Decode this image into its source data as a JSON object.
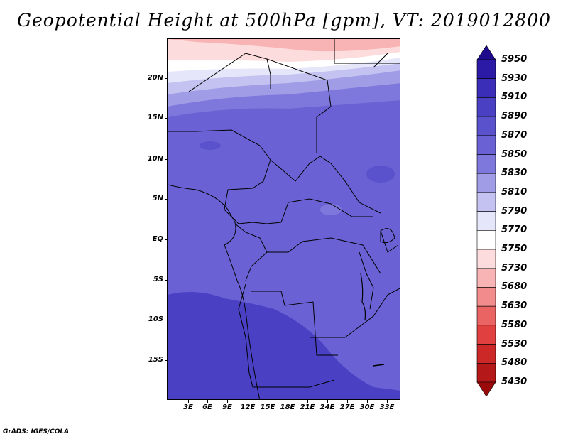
{
  "title": "Geopotential Height at 500hPa [gpm], VT: 2019012800",
  "credit": "GrADS: IGES/COLA",
  "lat_labels": [
    "20N",
    "15N",
    "10N",
    "5N",
    "EQ",
    "5S",
    "10S",
    "15S"
  ],
  "lon_labels": [
    "3E",
    "6E",
    "9E",
    "12E",
    "15E",
    "18E",
    "21E",
    "24E",
    "27E",
    "30E",
    "33E"
  ],
  "colorbar": {
    "levels": [
      "5950",
      "5930",
      "5910",
      "5890",
      "5870",
      "5850",
      "5830",
      "5810",
      "5790",
      "5770",
      "5750",
      "5730",
      "5680",
      "5630",
      "5580",
      "5530",
      "5480",
      "5430"
    ],
    "colors": [
      "#1e0a8c",
      "#2b1aa6",
      "#3a2db8",
      "#4a40c4",
      "#5a52cc",
      "#6a62d4",
      "#7e78dc",
      "#a09ce6",
      "#c4c2f0",
      "#e6e6fa",
      "#ffffff",
      "#fcdcdc",
      "#f8b4b4",
      "#f28c8c",
      "#ea6464",
      "#e04040",
      "#cc2828",
      "#b41818",
      "#9a0a0a"
    ]
  },
  "colors": {
    "land_dominant": "#6a62d4",
    "south_core": "#4a40c4",
    "north_high": "#f8b4b4"
  }
}
